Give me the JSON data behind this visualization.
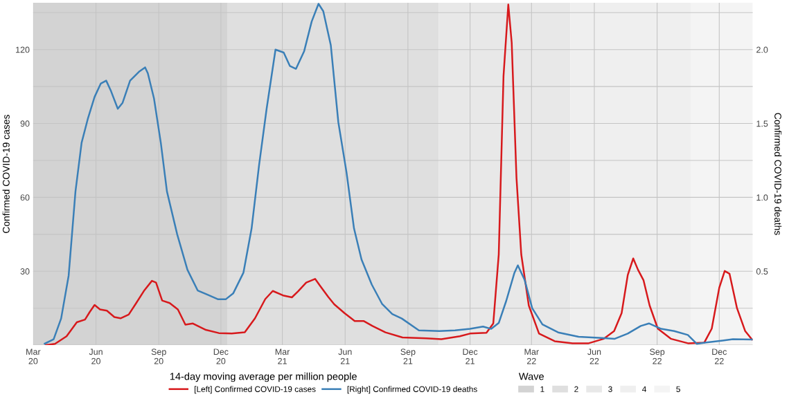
{
  "chart_data": {
    "type": "line",
    "ylabel": "Confirmed COVID-19 cases",
    "y2label": "Confirmed COVID-19 deaths",
    "legend_title": "14-day moving average per million people",
    "annotations": [
      "Wave"
    ],
    "xlim": [
      "2020-03-01",
      "2023-01-19"
    ],
    "xticks": [
      {
        "value": "2020-03-01",
        "label": "Mar\n20"
      },
      {
        "value": "2020-06-01",
        "label": "Jun\n20"
      },
      {
        "value": "2020-09-01",
        "label": "Sep\n20"
      },
      {
        "value": "2020-12-01",
        "label": "Dec\n20"
      },
      {
        "value": "2021-03-01",
        "label": "Mar\n21"
      },
      {
        "value": "2021-06-01",
        "label": "Jun\n21"
      },
      {
        "value": "2021-09-01",
        "label": "Sep\n21"
      },
      {
        "value": "2021-12-01",
        "label": "Dec\n21"
      },
      {
        "value": "2022-03-01",
        "label": "Mar\n22"
      },
      {
        "value": "2022-06-01",
        "label": "Jun\n22"
      },
      {
        "value": "2022-09-01",
        "label": "Sep\n22"
      },
      {
        "value": "2022-12-01",
        "label": "Dec\n22"
      }
    ],
    "ylim": [
      0,
      139
    ],
    "yticks": [
      {
        "value": 0,
        "label": null
      },
      {
        "value": 15,
        "label": null
      },
      30,
      {
        "value": 45,
        "label": null
      },
      60,
      {
        "value": 75,
        "label": null
      },
      90,
      {
        "value": 105,
        "label": null
      },
      120,
      {
        "value": 135,
        "label": null
      }
    ],
    "y2lim": [
      0,
      2.317
    ],
    "y2ticks": [
      0.5,
      {
        "value": 1.0,
        "label": "1.0"
      },
      1.5,
      {
        "value": 2.0,
        "label": "2.0"
      }
    ],
    "grid": true,
    "legend": "bottom",
    "bands": [
      {
        "axis": "x",
        "from": "2020-03-01",
        "to": "2020-12-11",
        "label": "1",
        "color": "#d3d3d3"
      },
      {
        "axis": "x",
        "from": "2020-12-11",
        "to": "2021-10-16",
        "label": "2",
        "color": "#dfdfdf"
      },
      {
        "axis": "x",
        "from": "2021-10-16",
        "to": "2022-04-27",
        "label": "3",
        "color": "#e8e8e8"
      },
      {
        "axis": "x",
        "from": "2022-04-27",
        "to": "2022-10-20",
        "label": "4",
        "color": "#efefef"
      },
      {
        "axis": "x",
        "from": "2022-10-20",
        "to": "2023-01-19",
        "label": "5",
        "color": "#f4f4f4"
      }
    ],
    "series": [
      {
        "name": "[Left] Confirmed COVID-19 cases",
        "color": "#d7191c",
        "x": [
          "2020-03-20",
          "2020-04-02",
          "2020-04-19",
          "2020-05-04",
          "2020-05-16",
          "2020-05-23",
          "2020-05-30",
          "2020-06-07",
          "2020-06-17",
          "2020-06-28",
          "2020-07-07",
          "2020-07-19",
          "2020-07-30",
          "2020-08-11",
          "2020-08-22",
          "2020-08-28",
          "2020-09-06",
          "2020-09-17",
          "2020-09-29",
          "2020-10-10",
          "2020-10-21",
          "2020-11-09",
          "2020-11-28",
          "2020-12-17",
          "2021-01-05",
          "2021-01-20",
          "2021-02-04",
          "2021-02-15",
          "2021-03-02",
          "2021-03-15",
          "2021-03-24",
          "2021-04-05",
          "2021-04-18",
          "2021-04-26",
          "2021-05-07",
          "2021-05-16",
          "2021-05-31",
          "2021-06-15",
          "2021-06-28",
          "2021-07-11",
          "2021-07-30",
          "2021-08-24",
          "2021-09-28",
          "2021-10-20",
          "2021-11-16",
          "2021-12-01",
          "2021-12-25",
          "2022-01-04",
          "2022-01-12",
          "2022-01-19",
          "2022-01-26",
          "2022-01-31",
          "2022-02-07",
          "2022-02-14",
          "2022-02-25",
          "2022-03-12",
          "2022-04-04",
          "2022-04-30",
          "2022-05-23",
          "2022-06-15",
          "2022-06-30",
          "2022-07-11",
          "2022-07-20",
          "2022-07-28",
          "2022-08-04",
          "2022-08-12",
          "2022-08-21",
          "2022-09-02",
          "2022-09-21",
          "2022-10-17",
          "2022-11-09",
          "2022-11-20",
          "2022-12-01",
          "2022-12-09",
          "2022-12-16",
          "2022-12-27",
          "2023-01-08",
          "2023-01-18"
        ],
        "values": [
          0,
          0.5,
          3.6,
          9.3,
          10.4,
          13.5,
          16.3,
          14.5,
          14.0,
          11.4,
          10.9,
          12.4,
          17.1,
          22.3,
          26.1,
          25.4,
          18.1,
          17.1,
          14.5,
          8.3,
          8.8,
          6.2,
          4.9,
          4.7,
          5.2,
          10.9,
          18.7,
          22.0,
          20.2,
          19.4,
          21.8,
          25.4,
          26.9,
          23.8,
          19.7,
          16.6,
          13.0,
          9.8,
          9.8,
          7.8,
          5.2,
          3.1,
          2.8,
          2.4,
          3.6,
          4.7,
          5.0,
          8.8,
          36.8,
          109.3,
          138.3,
          122.8,
          67.9,
          36.8,
          16.1,
          4.7,
          1.6,
          0.7,
          0.7,
          2.6,
          5.7,
          13.0,
          28.5,
          35.2,
          30.6,
          26.4,
          16.1,
          6.7,
          2.6,
          0.7,
          1.0,
          6.7,
          23.3,
          30.1,
          29.0,
          15.0,
          5.7,
          2.3
        ]
      },
      {
        "name": "[Right] Confirmed COVID-19 deaths",
        "color": "#3a7fb7",
        "axis": "y2",
        "x": [
          "2020-03-18",
          "2020-03-31",
          "2020-04-11",
          "2020-04-22",
          "2020-05-02",
          "2020-05-11",
          "2020-05-20",
          "2020-05-30",
          "2020-06-08",
          "2020-06-16",
          "2020-06-23",
          "2020-07-03",
          "2020-07-10",
          "2020-07-21",
          "2020-08-03",
          "2020-08-12",
          "2020-08-16",
          "2020-08-25",
          "2020-09-04",
          "2020-09-13",
          "2020-09-28",
          "2020-10-13",
          "2020-10-28",
          "2020-11-12",
          "2020-11-27",
          "2020-12-08",
          "2020-12-19",
          "2021-01-03",
          "2021-01-15",
          "2021-01-26",
          "2021-02-06",
          "2021-02-19",
          "2021-03-03",
          "2021-03-12",
          "2021-03-21",
          "2021-04-02",
          "2021-04-13",
          "2021-04-23",
          "2021-04-30",
          "2021-05-11",
          "2021-05-22",
          "2021-06-03",
          "2021-06-14",
          "2021-06-25",
          "2021-07-10",
          "2021-07-25",
          "2021-08-09",
          "2021-08-23",
          "2021-09-17",
          "2021-10-17",
          "2021-11-09",
          "2021-12-01",
          "2021-12-20",
          "2022-01-01",
          "2022-01-12",
          "2022-01-23",
          "2022-02-04",
          "2022-02-09",
          "2022-02-19",
          "2022-03-02",
          "2022-03-17",
          "2022-04-09",
          "2022-05-09",
          "2022-06-12",
          "2022-07-01",
          "2022-07-20",
          "2022-08-08",
          "2022-08-20",
          "2022-09-07",
          "2022-09-26",
          "2022-10-16",
          "2022-10-29",
          "2022-11-10",
          "2022-12-06",
          "2022-12-21",
          "2023-01-18"
        ],
        "values": [
          0.01,
          0.04,
          0.18,
          0.47,
          1.04,
          1.37,
          1.53,
          1.68,
          1.77,
          1.79,
          1.72,
          1.6,
          1.64,
          1.79,
          1.85,
          1.88,
          1.84,
          1.67,
          1.37,
          1.04,
          0.75,
          0.51,
          0.37,
          0.34,
          0.31,
          0.31,
          0.35,
          0.49,
          0.79,
          1.22,
          1.6,
          2.0,
          1.98,
          1.89,
          1.87,
          1.99,
          2.19,
          2.31,
          2.26,
          2.03,
          1.51,
          1.17,
          0.79,
          0.58,
          0.41,
          0.28,
          0.21,
          0.18,
          0.1,
          0.095,
          0.1,
          0.11,
          0.126,
          0.11,
          0.15,
          0.3,
          0.49,
          0.54,
          0.44,
          0.25,
          0.14,
          0.086,
          0.057,
          0.048,
          0.043,
          0.078,
          0.13,
          0.147,
          0.11,
          0.095,
          0.069,
          0.009,
          0.017,
          0.031,
          0.04,
          0.038
        ]
      }
    ]
  }
}
